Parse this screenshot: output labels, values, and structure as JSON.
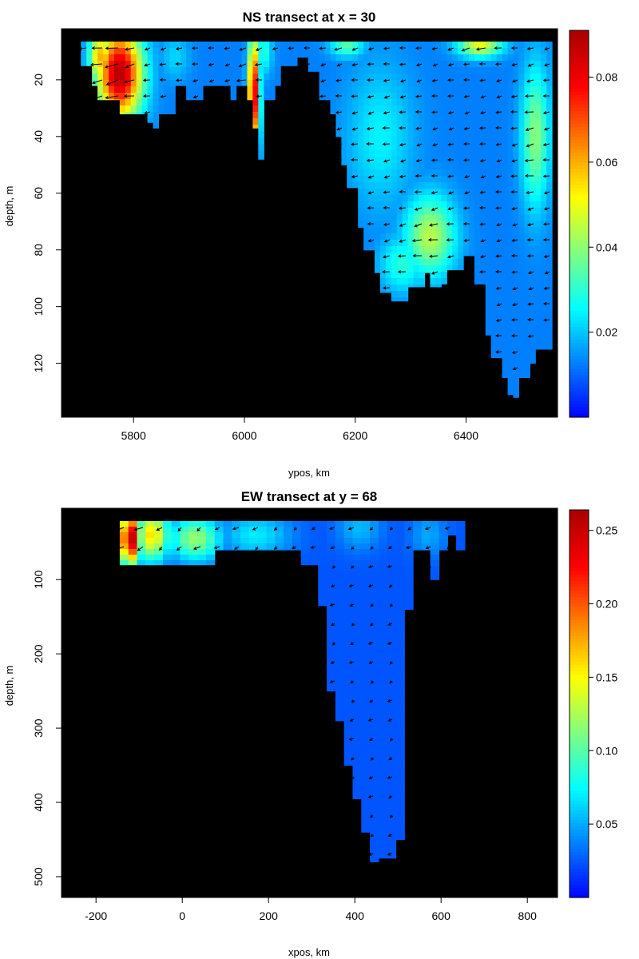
{
  "chart_data": [
    {
      "type": "heatmap",
      "title": "NS transect at x = 30",
      "xlabel": "ypos, km",
      "ylabel": "depth, m",
      "xlim": [
        5670,
        6565
      ],
      "ylim": [
        139,
        2
      ],
      "x_ticks": [
        5800,
        6000,
        6200,
        6400
      ],
      "y_ticks": [
        20,
        40,
        60,
        80,
        100,
        120
      ],
      "colorbar": {
        "min": 0.0,
        "max": 0.091,
        "ticks": [
          "0.02",
          "0.04",
          "0.06",
          "0.08"
        ],
        "tick_values": [
          0.02,
          0.04,
          0.06,
          0.08
        ]
      },
      "colormap": [
        "#0000ff",
        "#0080ff",
        "#00ffff",
        "#80ff80",
        "#ffff00",
        "#ff8000",
        "#ff0000",
        "#aa0000"
      ],
      "background": "#000000",
      "column_width_km": 10,
      "bottom_depth_profile": [
        [
          5705,
          15
        ],
        [
          5715,
          22
        ],
        [
          5725,
          27
        ],
        [
          5740,
          27
        ],
        [
          5765,
          32
        ],
        [
          5800,
          32
        ],
        [
          5820,
          35
        ],
        [
          5830,
          37
        ],
        [
          5840,
          32
        ],
        [
          5855,
          32
        ],
        [
          5870,
          22
        ],
        [
          5890,
          27
        ],
        [
          5905,
          27
        ],
        [
          5920,
          22
        ],
        [
          5950,
          22
        ],
        [
          5965,
          27
        ],
        [
          5980,
          22
        ],
        [
          5995,
          27
        ],
        [
          6010,
          37
        ],
        [
          6020,
          48
        ],
        [
          6030,
          27
        ],
        [
          6045,
          22
        ],
        [
          6060,
          15
        ],
        [
          6090,
          12
        ],
        [
          6110,
          17
        ],
        [
          6130,
          27
        ],
        [
          6150,
          32
        ],
        [
          6160,
          40
        ],
        [
          6170,
          50
        ],
        [
          6180,
          58
        ],
        [
          6195,
          72
        ],
        [
          6210,
          80
        ],
        [
          6225,
          88
        ],
        [
          6240,
          95
        ],
        [
          6255,
          98
        ],
        [
          6270,
          98
        ],
        [
          6290,
          93
        ],
        [
          6315,
          88
        ],
        [
          6330,
          93
        ],
        [
          6345,
          92
        ],
        [
          6360,
          87
        ],
        [
          6390,
          82
        ],
        [
          6410,
          92
        ],
        [
          6425,
          110
        ],
        [
          6440,
          118
        ],
        [
          6455,
          125
        ],
        [
          6470,
          131
        ],
        [
          6480,
          132
        ],
        [
          6490,
          125
        ],
        [
          6505,
          120
        ],
        [
          6520,
          115
        ],
        [
          6550,
          109
        ]
      ],
      "field_blobs": [
        {
          "x": 5770,
          "d": 18,
          "v": 0.09,
          "sx": 40,
          "sd": 16
        },
        {
          "x": 5735,
          "d": 12,
          "v": 0.06,
          "sx": 20,
          "sd": 10
        },
        {
          "x": 6012,
          "d": 25,
          "v": 0.085,
          "sx": 10,
          "sd": 20
        },
        {
          "x": 6030,
          "d": 10,
          "v": 0.03,
          "sx": 15,
          "sd": 8
        },
        {
          "x": 5870,
          "d": 12,
          "v": 0.022,
          "sx": 25,
          "sd": 8
        },
        {
          "x": 6330,
          "d": 75,
          "v": 0.045,
          "sx": 45,
          "sd": 14
        },
        {
          "x": 6280,
          "d": 85,
          "v": 0.03,
          "sx": 40,
          "sd": 10
        },
        {
          "x": 6520,
          "d": 40,
          "v": 0.04,
          "sx": 25,
          "sd": 25
        },
        {
          "x": 6240,
          "d": 40,
          "v": 0.025,
          "sx": 60,
          "sd": 25
        },
        {
          "x": 6420,
          "d": 8,
          "v": 0.05,
          "sx": 40,
          "sd": 4
        },
        {
          "x": 6180,
          "d": 8,
          "v": 0.035,
          "sx": 30,
          "sd": 4
        }
      ],
      "field_background_value": 0.013,
      "velocity_angle_deg": 200,
      "series": []
    },
    {
      "type": "heatmap",
      "title": "EW transect at y = 68",
      "xlabel": "xpos, km",
      "ylabel": "depth, m",
      "xlim": [
        -280,
        870
      ],
      "ylim": [
        528,
        4
      ],
      "x_ticks": [
        -200,
        0,
        200,
        400,
        600,
        800
      ],
      "y_ticks": [
        100,
        200,
        300,
        400,
        500
      ],
      "colorbar": {
        "min": 0.0,
        "max": 0.264,
        "ticks": [
          "0.05",
          "0.10",
          "0.15",
          "0.20",
          "0.25"
        ],
        "tick_values": [
          0.05,
          0.1,
          0.15,
          0.2,
          0.25
        ]
      },
      "colormap": [
        "#0000ff",
        "#0080ff",
        "#00ffff",
        "#80ff80",
        "#ffff00",
        "#ff8000",
        "#ff0000",
        "#aa0000"
      ],
      "background": "#000000",
      "column_width_km": 20,
      "bottom_depth_profile": [
        [
          -145,
          80
        ],
        [
          -125,
          80
        ],
        [
          -100,
          80
        ],
        [
          -60,
          80
        ],
        [
          -20,
          80
        ],
        [
          20,
          80
        ],
        [
          55,
          80
        ],
        [
          70,
          60
        ],
        [
          100,
          60
        ],
        [
          130,
          60
        ],
        [
          140,
          40
        ],
        [
          150,
          60
        ],
        [
          200,
          60
        ],
        [
          240,
          60
        ],
        [
          270,
          80
        ],
        [
          290,
          80
        ],
        [
          300,
          135
        ],
        [
          320,
          205
        ],
        [
          330,
          250
        ],
        [
          345,
          290
        ],
        [
          360,
          350
        ],
        [
          375,
          395
        ],
        [
          395,
          395
        ],
        [
          405,
          440
        ],
        [
          420,
          465
        ],
        [
          430,
          480
        ],
        [
          440,
          500
        ],
        [
          450,
          475
        ],
        [
          470,
          475
        ],
        [
          490,
          450
        ],
        [
          500,
          350
        ],
        [
          510,
          140
        ],
        [
          515,
          70
        ],
        [
          525,
          60
        ],
        [
          540,
          60
        ],
        [
          555,
          80
        ],
        [
          565,
          100
        ],
        [
          575,
          110
        ],
        [
          585,
          60
        ],
        [
          600,
          40
        ],
        [
          615,
          60
        ],
        [
          630,
          60
        ],
        [
          645,
          60
        ]
      ],
      "field_blobs": [
        {
          "x": -130,
          "d": 45,
          "v": 0.26,
          "sx": 25,
          "sd": 35
        },
        {
          "x": -80,
          "d": 40,
          "v": 0.16,
          "sx": 40,
          "sd": 35
        },
        {
          "x": 20,
          "d": 45,
          "v": 0.12,
          "sx": 60,
          "sd": 30
        },
        {
          "x": 160,
          "d": 40,
          "v": 0.07,
          "sx": 80,
          "sd": 30
        },
        {
          "x": 400,
          "d": 30,
          "v": 0.055,
          "sx": 50,
          "sd": 30
        },
        {
          "x": 560,
          "d": 40,
          "v": 0.05,
          "sx": 40,
          "sd": 30
        }
      ],
      "field_background_value": 0.025,
      "velocity_angle_deg": 230,
      "series": []
    }
  ]
}
